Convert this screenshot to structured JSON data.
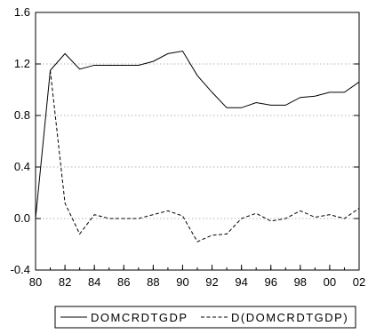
{
  "chart_data": {
    "type": "line",
    "title": "",
    "xlabel": "",
    "ylabel": "",
    "x": [
      1980,
      1981,
      1982,
      1983,
      1984,
      1985,
      1986,
      1987,
      1988,
      1989,
      1990,
      1991,
      1992,
      1993,
      1994,
      1995,
      1996,
      1997,
      1998,
      1999,
      2000,
      2001,
      2002
    ],
    "xlim": [
      1980,
      2002
    ],
    "ylim": [
      -0.4,
      1.6
    ],
    "x_ticks": [
      "80",
      "82",
      "84",
      "86",
      "88",
      "90",
      "92",
      "94",
      "96",
      "98",
      "00",
      "02"
    ],
    "y_ticks": [
      "-0.4",
      "0.0",
      "0.4",
      "0.8",
      "1.2",
      "1.6"
    ],
    "grid": "horizontal dotted",
    "legend_position": "bottom",
    "series": [
      {
        "name": "DOMCRDTGDP",
        "style": "solid",
        "color": "#000000",
        "values": [
          0.0,
          1.15,
          1.28,
          1.16,
          1.19,
          1.19,
          1.19,
          1.19,
          1.22,
          1.28,
          1.3,
          1.11,
          0.98,
          0.86,
          0.86,
          0.9,
          0.88,
          0.88,
          0.94,
          0.95,
          0.98,
          0.98,
          1.06
        ]
      },
      {
        "name": "D(DOMCRDTGDP)",
        "style": "dashed",
        "color": "#000000",
        "values": [
          null,
          1.15,
          0.12,
          -0.12,
          0.03,
          0.0,
          0.0,
          0.0,
          0.03,
          0.06,
          0.02,
          -0.18,
          -0.13,
          -0.12,
          0.0,
          0.04,
          -0.02,
          0.0,
          0.06,
          0.01,
          0.03,
          0.0,
          0.08
        ]
      }
    ]
  }
}
